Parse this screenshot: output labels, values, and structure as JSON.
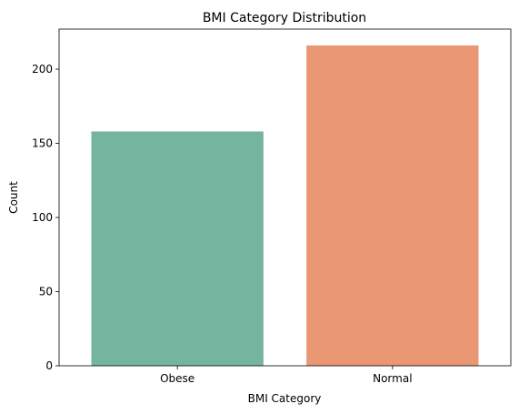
{
  "chart_data": {
    "type": "bar",
    "title": "BMI Category Distribution",
    "xlabel": "BMI Category",
    "ylabel": "Count",
    "categories": [
      "Obese",
      "Normal"
    ],
    "values": [
      158,
      216
    ],
    "colors": [
      "#75b5a0",
      "#ea9774"
    ],
    "ylim": [
      0,
      227
    ],
    "yticks": [
      0,
      50,
      100,
      150,
      200
    ],
    "grid": false,
    "legend": "none"
  }
}
